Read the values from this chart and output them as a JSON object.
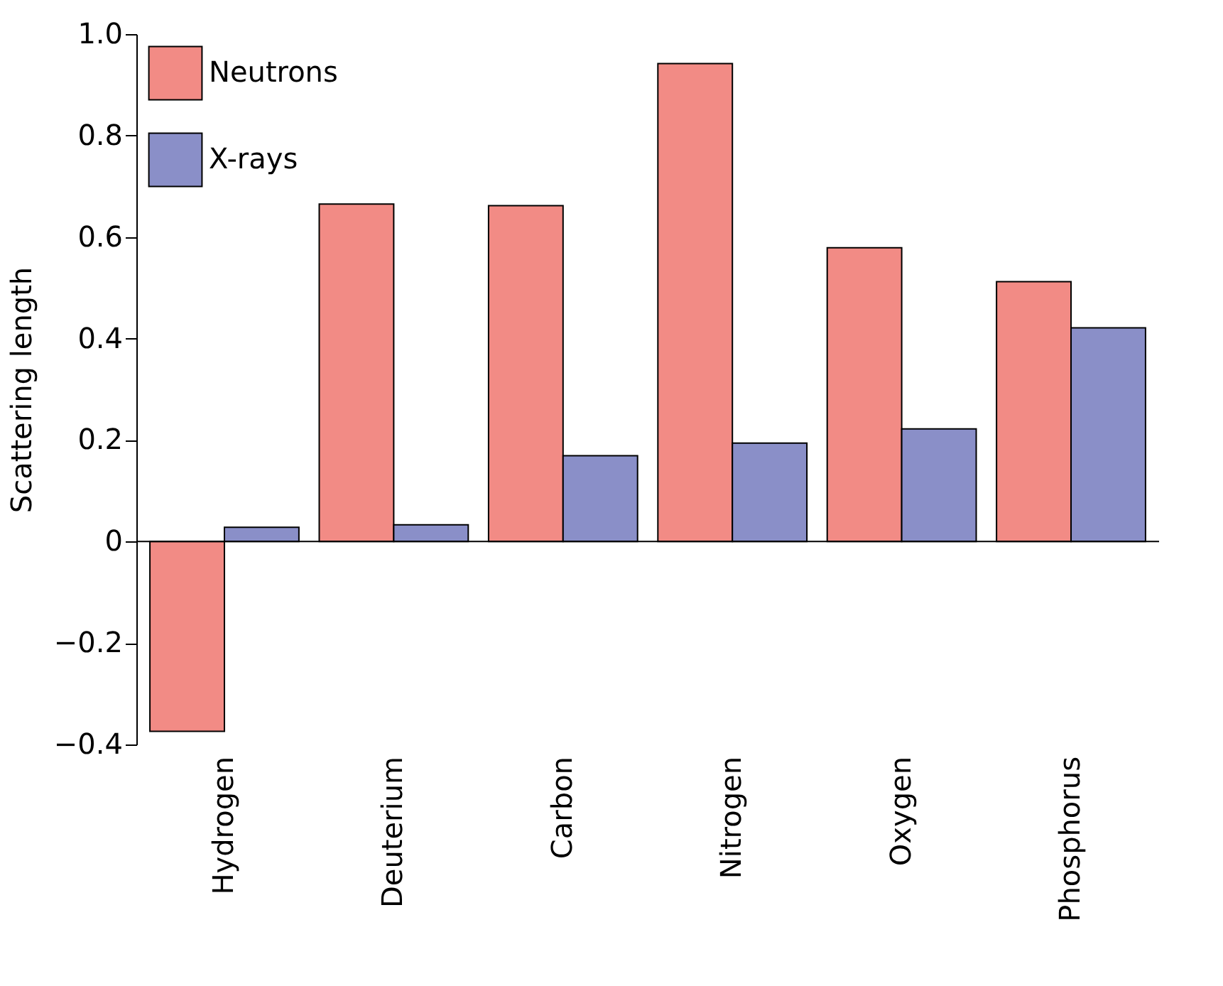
{
  "chart_data": {
    "type": "bar",
    "ylabel": "Scattering length",
    "categories": [
      "Hydrogen",
      "Deuterium",
      "Carbon",
      "Nitrogen",
      "Oxygen",
      "Phosphorus"
    ],
    "series": [
      {
        "name": "Neutrons",
        "color": "#f28b85",
        "values": [
          -0.374,
          0.665,
          0.662,
          0.942,
          0.579,
          0.512
        ]
      },
      {
        "name": "X-rays",
        "color": "#8a8fc8",
        "values": [
          0.028,
          0.033,
          0.169,
          0.194,
          0.222,
          0.421
        ]
      }
    ],
    "ylim": [
      -0.4,
      1.0
    ],
    "yticks": [
      {
        "value": -0.4,
        "label": "−0.4"
      },
      {
        "value": -0.2,
        "label": "−0.2"
      },
      0,
      0.2,
      0.4,
      0.6,
      0.8,
      {
        "value": 1.0,
        "label": "1.0"
      }
    ],
    "ref_lines": [
      {
        "axis": "y",
        "value": 0,
        "color": "#000000"
      }
    ],
    "grid": false,
    "legend": "top left"
  }
}
